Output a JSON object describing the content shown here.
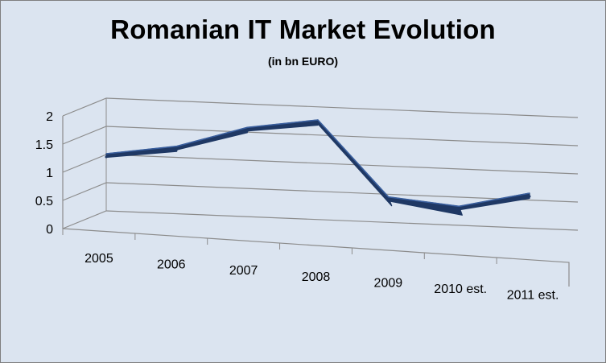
{
  "chart_data": {
    "type": "line",
    "title": "Romanian IT Market Evolution",
    "subtitle": "(in bn EURO)",
    "categories": [
      "2005",
      "2006",
      "2007",
      "2008",
      "2009",
      "2010 est.",
      "2011 est."
    ],
    "values": [
      1.0,
      1.2,
      1.6,
      1.8,
      0.5,
      0.4,
      0.7
    ],
    "yticks": [
      "0",
      "0.5",
      "1",
      "1.5",
      "2"
    ],
    "ylim": [
      0,
      2
    ],
    "xlabel": "",
    "ylabel": "",
    "grid": true,
    "legend": "none",
    "projection": "3d-perspective",
    "colors": {
      "series": "#1f3864",
      "series_side": "#3a5f9e",
      "background": "#dbe4f0",
      "gridline": "#8c8c8c"
    }
  }
}
